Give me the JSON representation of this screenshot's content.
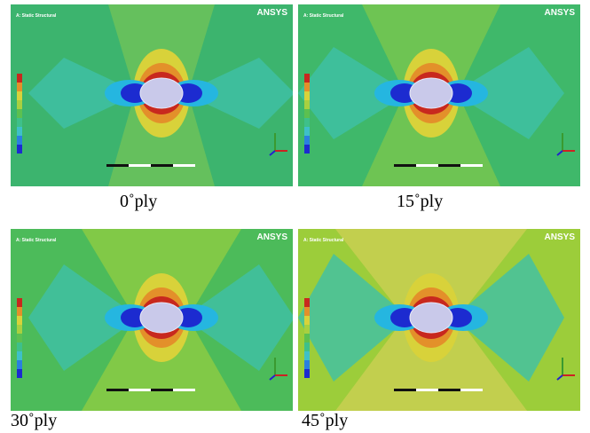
{
  "panels": [
    {
      "logo": "ANSYS",
      "heading": "A: Static Structural",
      "caption": "0˚ply"
    },
    {
      "logo": "ANSYS",
      "heading": "A: Static Structural",
      "caption": "15˚ply"
    },
    {
      "logo": "ANSYS",
      "heading": "A: Static Structural",
      "caption": "30˚ply"
    },
    {
      "logo": "ANSYS",
      "heading": "A: Static Structural",
      "caption": "45˚ply"
    }
  ]
}
